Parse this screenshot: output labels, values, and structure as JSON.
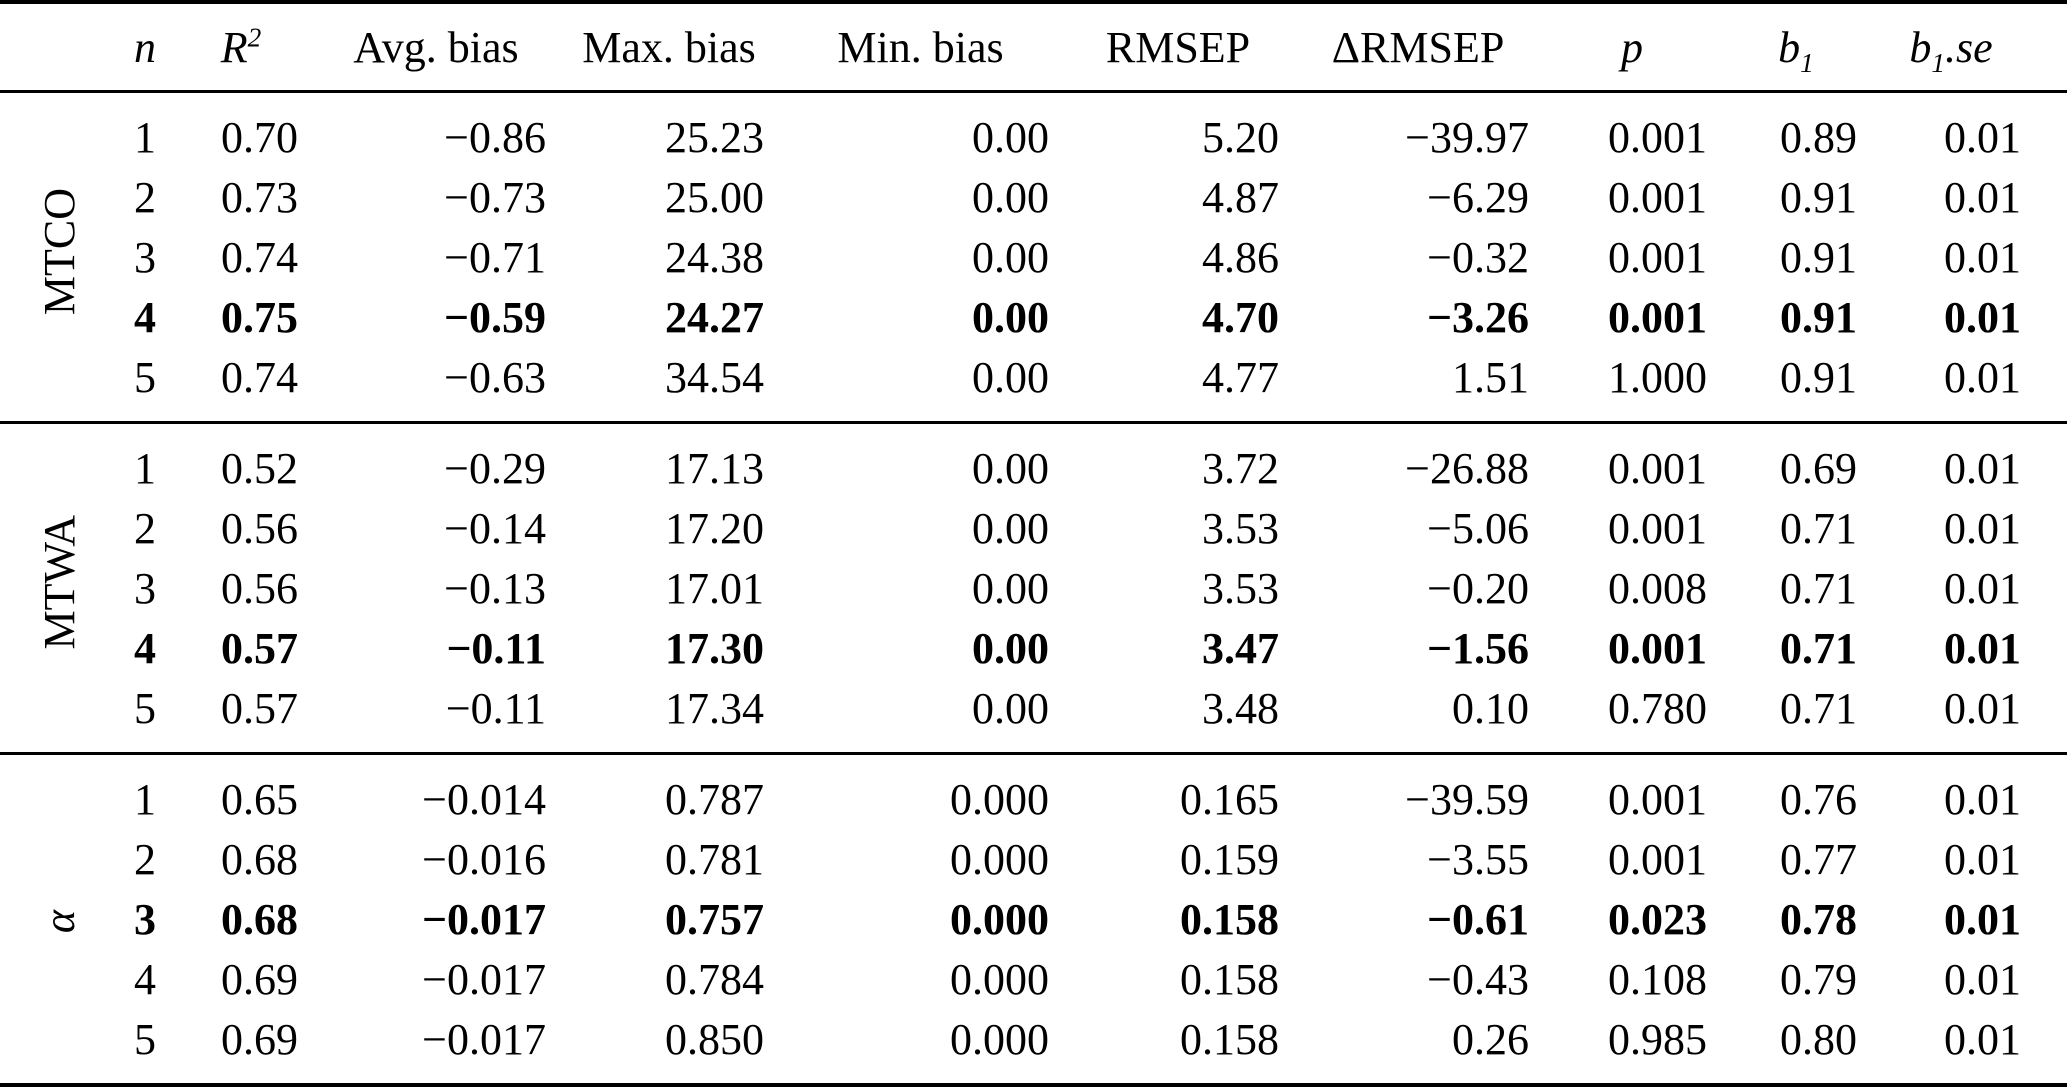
{
  "colors": {
    "text": "#000000",
    "background": "#ffffff",
    "rule": "#000000"
  },
  "chart_data": {
    "type": "table",
    "columns": [
      {
        "key": "n",
        "label": "n",
        "italic": true
      },
      {
        "key": "r2",
        "label": "R",
        "sup": "2",
        "italic": true
      },
      {
        "key": "avg_bias",
        "label": "Avg. bias",
        "italic": false
      },
      {
        "key": "max_bias",
        "label": "Max. bias",
        "italic": false
      },
      {
        "key": "min_bias",
        "label": "Min. bias",
        "italic": false
      },
      {
        "key": "rmsep",
        "label": "RMSEP",
        "italic": false
      },
      {
        "key": "delta_rmsep",
        "label": "ΔRMSEP",
        "italic": false
      },
      {
        "key": "p",
        "label": "p",
        "italic": true
      },
      {
        "key": "b1",
        "label": "b",
        "sub": "1",
        "italic": true
      },
      {
        "key": "b1_se",
        "label": "b",
        "sub": "1",
        "suffix": ".se",
        "italic": true
      }
    ],
    "groups": [
      {
        "key": "mtco",
        "label": "MTCO",
        "label_italic": false,
        "bold_row": 3,
        "rows": [
          [
            "1",
            "0.70",
            "−0.86",
            "25.23",
            "0.00",
            "5.20",
            "−39.97",
            "0.001",
            "0.89",
            "0.01"
          ],
          [
            "2",
            "0.73",
            "−0.73",
            "25.00",
            "0.00",
            "4.87",
            "−6.29",
            "0.001",
            "0.91",
            "0.01"
          ],
          [
            "3",
            "0.74",
            "−0.71",
            "24.38",
            "0.00",
            "4.86",
            "−0.32",
            "0.001",
            "0.91",
            "0.01"
          ],
          [
            "4",
            "0.75",
            "−0.59",
            "24.27",
            "0.00",
            "4.70",
            "−3.26",
            "0.001",
            "0.91",
            "0.01"
          ],
          [
            "5",
            "0.74",
            "−0.63",
            "34.54",
            "0.00",
            "4.77",
            "1.51",
            "1.000",
            "0.91",
            "0.01"
          ]
        ]
      },
      {
        "key": "mtwa",
        "label": "MTWA",
        "label_italic": false,
        "bold_row": 3,
        "rows": [
          [
            "1",
            "0.52",
            "−0.29",
            "17.13",
            "0.00",
            "3.72",
            "−26.88",
            "0.001",
            "0.69",
            "0.01"
          ],
          [
            "2",
            "0.56",
            "−0.14",
            "17.20",
            "0.00",
            "3.53",
            "−5.06",
            "0.001",
            "0.71",
            "0.01"
          ],
          [
            "3",
            "0.56",
            "−0.13",
            "17.01",
            "0.00",
            "3.53",
            "−0.20",
            "0.008",
            "0.71",
            "0.01"
          ],
          [
            "4",
            "0.57",
            "−0.11",
            "17.30",
            "0.00",
            "3.47",
            "−1.56",
            "0.001",
            "0.71",
            "0.01"
          ],
          [
            "5",
            "0.57",
            "−0.11",
            "17.34",
            "0.00",
            "3.48",
            "0.10",
            "0.780",
            "0.71",
            "0.01"
          ]
        ]
      },
      {
        "key": "alpha",
        "label": "α",
        "label_italic": true,
        "bold_row": 2,
        "rows": [
          [
            "1",
            "0.65",
            "−0.014",
            "0.787",
            "0.000",
            "0.165",
            "−39.59",
            "0.001",
            "0.76",
            "0.01"
          ],
          [
            "2",
            "0.68",
            "−0.016",
            "0.781",
            "0.000",
            "0.159",
            "−3.55",
            "0.001",
            "0.77",
            "0.01"
          ],
          [
            "3",
            "0.68",
            "−0.017",
            "0.757",
            "0.000",
            "0.158",
            "−0.61",
            "0.023",
            "0.78",
            "0.01"
          ],
          [
            "4",
            "0.69",
            "−0.017",
            "0.784",
            "0.000",
            "0.158",
            "−0.43",
            "0.108",
            "0.79",
            "0.01"
          ],
          [
            "5",
            "0.69",
            "−0.017",
            "0.850",
            "0.000",
            "0.158",
            "0.26",
            "0.985",
            "0.80",
            "0.01"
          ]
        ]
      }
    ]
  }
}
